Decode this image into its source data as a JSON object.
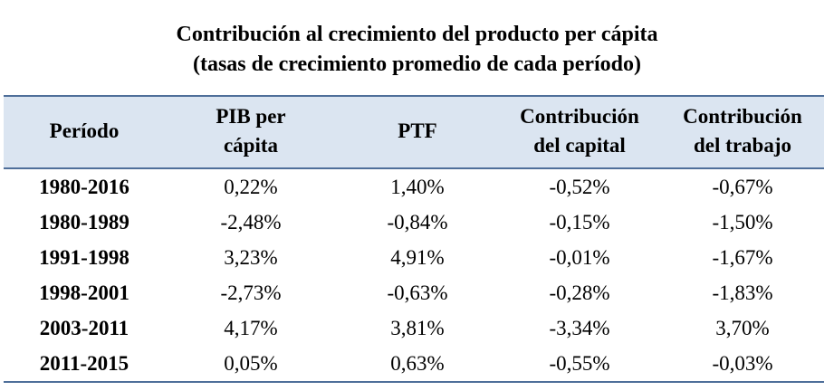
{
  "title": {
    "line1": "Contribución al crecimiento del producto per cápita",
    "line2": "(tasas de crecimiento promedio de cada período)"
  },
  "columns": [
    {
      "line1": "Período",
      "line2": ""
    },
    {
      "line1": "PIB per",
      "line2": "cápita"
    },
    {
      "line1": "PTF",
      "line2": ""
    },
    {
      "line1": "Contribución",
      "line2": "del capital"
    },
    {
      "line1": "Contribución",
      "line2": "del trabajo"
    }
  ],
  "rows": [
    {
      "period": "1980-2016",
      "pib": "0,22%",
      "ptf": "1,40%",
      "capital": "-0,52%",
      "trabajo": "-0,67%"
    },
    {
      "period": "1980-1989",
      "pib": "-2,48%",
      "ptf": "-0,84%",
      "capital": "-0,15%",
      "trabajo": "-1,50%"
    },
    {
      "period": "1991-1998",
      "pib": "3,23%",
      "ptf": "4,91%",
      "capital": "-0,01%",
      "trabajo": "-1,67%"
    },
    {
      "period": "1998-2001",
      "pib": "-2,73%",
      "ptf": "-0,63%",
      "capital": "-0,28%",
      "trabajo": "-1,83%"
    },
    {
      "period": "2003-2011",
      "pib": "4,17%",
      "ptf": "3,81%",
      "capital": "-3,34%",
      "trabajo": "3,70%"
    },
    {
      "period": "2011-2015",
      "pib": "0,05%",
      "ptf": "0,63%",
      "capital": "-0,55%",
      "trabajo": "-0,03%"
    }
  ],
  "colors": {
    "header_bg": "#dbe5f1",
    "rule": "#4f6f9a"
  }
}
